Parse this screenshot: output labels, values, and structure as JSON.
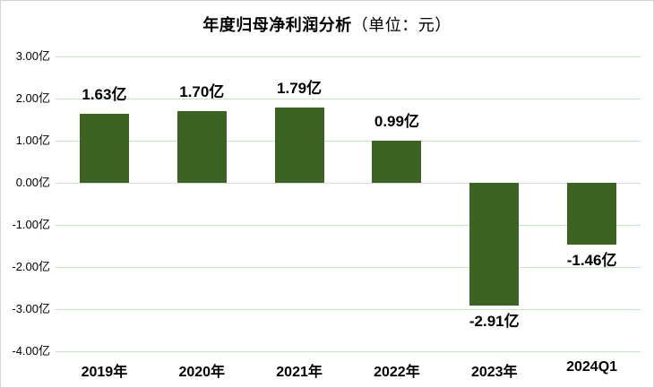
{
  "chart_data": {
    "type": "bar",
    "title": "年度归母净利润分析",
    "title_suffix": "（单位：元）",
    "categories": [
      "2019年",
      "2020年",
      "2021年",
      "2022年",
      "2023年",
      "2024Q1"
    ],
    "values": [
      1.63,
      1.7,
      1.79,
      0.99,
      -2.91,
      -1.46
    ],
    "value_labels": [
      "1.63亿",
      "1.70亿",
      "1.79亿",
      "0.99亿",
      "-2.91亿",
      "-1.46亿"
    ],
    "y_ticks": [
      {
        "value": 3,
        "label": "3.00亿"
      },
      {
        "value": 2,
        "label": "2.00亿"
      },
      {
        "value": 1,
        "label": "1.00亿"
      },
      {
        "value": 0,
        "label": "0.00亿"
      },
      {
        "value": -1,
        "label": "-1.00亿"
      },
      {
        "value": -2,
        "label": "-2.00亿"
      },
      {
        "value": -3,
        "label": "-3.00亿"
      },
      {
        "value": -4,
        "label": "-4.00亿"
      }
    ],
    "ylim": [
      -4,
      3
    ],
    "xlabel": "",
    "ylabel": "",
    "legend_position": "none",
    "grid": "on",
    "bar_color": "#3c6324",
    "grid_color": "#c6e3c6",
    "zero_line_color": "#d9d9d9",
    "label_color": "#000000"
  }
}
